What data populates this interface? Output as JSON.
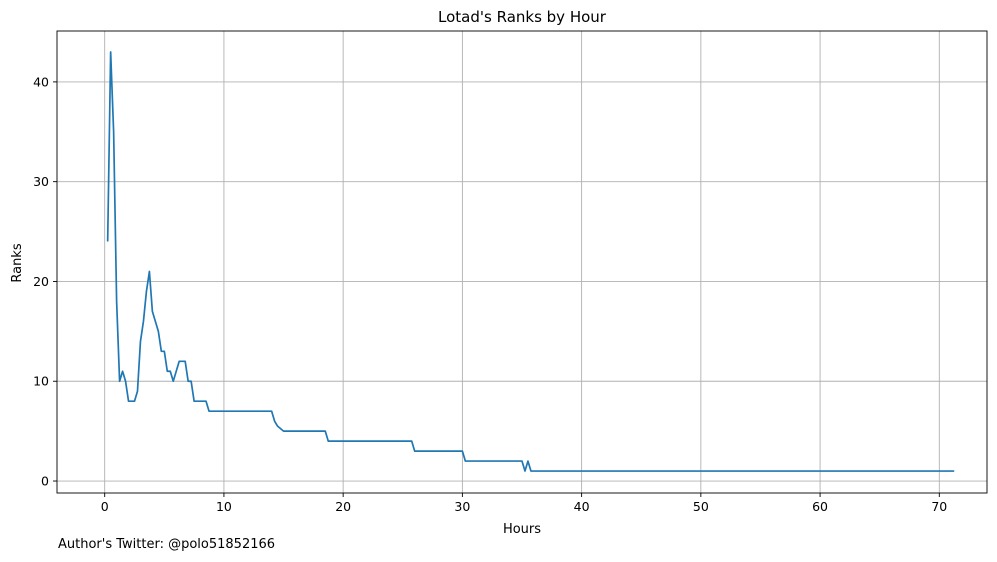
{
  "footer_text": "Author's Twitter: @polo51852166",
  "chart_data": {
    "type": "line",
    "title": "Lotad's Ranks by Hour",
    "xlabel": "Hours",
    "ylabel": "Ranks",
    "xlim": [
      -4,
      74
    ],
    "ylim": [
      -1.2,
      45.1
    ],
    "xticks": [
      0,
      10,
      20,
      30,
      40,
      50,
      60,
      70
    ],
    "yticks": [
      0,
      10,
      20,
      30,
      40
    ],
    "grid": true,
    "line_color": "#1f77b4",
    "series": [
      {
        "x": [
          0.25,
          0.5,
          0.75,
          1.0,
          1.25,
          1.5,
          1.75,
          2.0,
          2.25,
          2.5,
          2.75,
          3.0,
          3.25,
          3.5,
          3.75,
          4.0,
          4.25,
          4.5,
          4.75,
          5.0,
          5.25,
          5.5,
          5.75,
          6.0,
          6.25,
          6.5,
          6.75,
          7.0,
          7.25,
          7.5,
          7.75,
          8.0,
          8.25,
          8.5,
          8.75,
          9.0,
          14.0,
          14.25,
          14.5,
          15.0,
          18.5,
          18.75,
          25.75,
          26.0,
          30.0,
          30.25,
          35.0,
          35.25,
          35.5,
          35.75,
          71.25
        ],
        "y": [
          24,
          43,
          35,
          18,
          10,
          11,
          10,
          8,
          8,
          8,
          9,
          14,
          16,
          19,
          21,
          17,
          16,
          15,
          13,
          13,
          11,
          11,
          10,
          11,
          12,
          12,
          12,
          10,
          10,
          8,
          8,
          8,
          8,
          8,
          7,
          7,
          7,
          6,
          5.5,
          5,
          5,
          4,
          4,
          3,
          3,
          2,
          2,
          1,
          2,
          1,
          1
        ]
      }
    ]
  }
}
